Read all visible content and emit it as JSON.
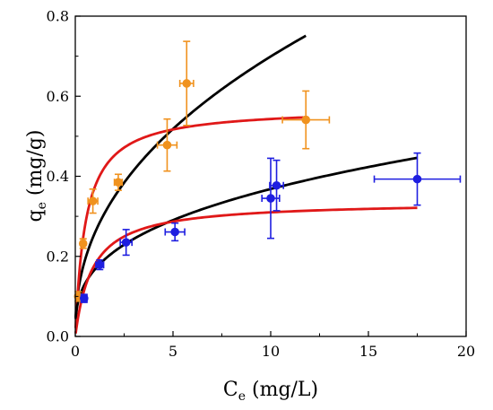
{
  "chart_data": {
    "type": "scatter",
    "xlabel": {
      "main": "C",
      "sub": "e",
      "unit": " (mg/L)"
    },
    "ylabel": {
      "main": "q",
      "sub": "e",
      "unit": " (mg/g)"
    },
    "xlim": [
      0,
      20
    ],
    "ylim": [
      0,
      0.8
    ],
    "x_ticks": [
      "0",
      "5",
      "10",
      "15",
      "20"
    ],
    "y_ticks": [
      "0.0",
      "0.2",
      "0.4",
      "0.6",
      "0.8"
    ],
    "x_tick_values": [
      0,
      5,
      10,
      15,
      20
    ],
    "y_tick_values": [
      0,
      0.2,
      0.4,
      0.6,
      0.8
    ],
    "grid": false,
    "series": [
      {
        "color": "#f0921e",
        "marker": "circle",
        "points": [
          {
            "x": 0.15,
            "y": 0.1,
            "xerr": 0.05,
            "yerr": 0.012
          },
          {
            "x": 0.4,
            "y": 0.232,
            "xerr": 0.12,
            "yerr": 0.012
          },
          {
            "x": 0.9,
            "y": 0.338,
            "xerr": 0.25,
            "yerr": 0.03
          },
          {
            "x": 2.2,
            "y": 0.385,
            "xerr": 0.2,
            "yerr": 0.02
          },
          {
            "x": 4.7,
            "y": 0.478,
            "xerr": 0.5,
            "yerr": 0.065
          },
          {
            "x": 5.7,
            "y": 0.632,
            "xerr": 0.35,
            "yerr": 0.105
          },
          {
            "x": 11.8,
            "y": 0.541,
            "xerr": 1.2,
            "yerr": 0.072
          }
        ]
      },
      {
        "color": "#1e1ee0",
        "marker": "circle",
        "points": [
          {
            "x": 0.45,
            "y": 0.095,
            "xerr": 0.15,
            "yerr": 0.01
          },
          {
            "x": 1.25,
            "y": 0.179,
            "xerr": 0.2,
            "yerr": 0.012
          },
          {
            "x": 2.6,
            "y": 0.235,
            "xerr": 0.3,
            "yerr": 0.032
          },
          {
            "x": 5.1,
            "y": 0.261,
            "xerr": 0.5,
            "yerr": 0.022
          },
          {
            "x": 10.0,
            "y": 0.345,
            "xerr": 0.45,
            "yerr": 0.1
          },
          {
            "x": 10.3,
            "y": 0.377,
            "xerr": 0.35,
            "yerr": 0.063
          },
          {
            "x": 17.5,
            "y": 0.393,
            "xerr": 2.2,
            "yerr": 0.065
          }
        ]
      }
    ],
    "fits": [
      {
        "color": "#000000",
        "model": "freundlich",
        "kf": 0.2585,
        "n": 2.314,
        "x_range": [
          0.02,
          11.8
        ]
      },
      {
        "color": "#e01818",
        "model": "langmuir",
        "qmax": 0.572,
        "kl": 1.88,
        "x_range": [
          0.02,
          11.8
        ]
      },
      {
        "color": "#000000",
        "model": "freundlich",
        "kf": 0.1674,
        "n": 2.92,
        "x_range": [
          0.02,
          17.5
        ]
      },
      {
        "color": "#e01818",
        "model": "langmuir",
        "qmax": 0.3372,
        "kl": 1.14,
        "x_range": [
          0.02,
          17.5
        ]
      }
    ]
  }
}
